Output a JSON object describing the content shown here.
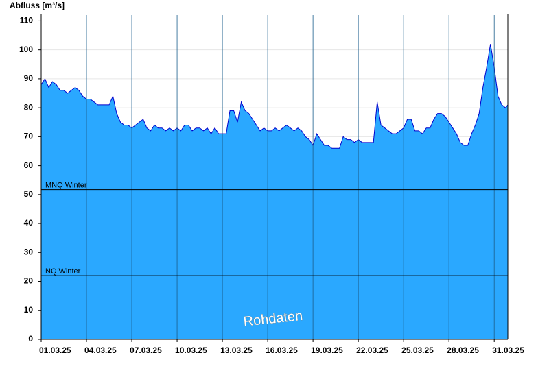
{
  "chart_data": {
    "type": "area",
    "y_label": "Abfluss [m³/s]",
    "annotation": "Rohdaten",
    "color": "#2aa8ff",
    "line_color": "#0000cc",
    "xlim": [
      1,
      31.9
    ],
    "xticks": [
      {
        "value": 1,
        "label": "01.03.25"
      },
      {
        "value": 4,
        "label": "04.03.25"
      },
      {
        "value": 7,
        "label": "07.03.25"
      },
      {
        "value": 10,
        "label": "10.03.25"
      },
      {
        "value": 13,
        "label": "13.03.25"
      },
      {
        "value": 16,
        "label": "16.03.25"
      },
      {
        "value": 19,
        "label": "19.03.25"
      },
      {
        "value": 22,
        "label": "22.03.25"
      },
      {
        "value": 25,
        "label": "25.03.25"
      },
      {
        "value": 28,
        "label": "28.03.25"
      },
      {
        "value": 31,
        "label": "31.03.25"
      }
    ],
    "ylim": [
      0,
      112
    ],
    "yticks": [
      0,
      10,
      20,
      30,
      40,
      50,
      60,
      70,
      80,
      90,
      100,
      110
    ],
    "grid": true,
    "reference_lines": [
      {
        "label": "MNQ Winter",
        "value": 51.7
      },
      {
        "label": "NQ Winter",
        "value": 22
      }
    ],
    "x": [
      1,
      1.25,
      1.5,
      1.75,
      2,
      2.25,
      2.5,
      2.75,
      3,
      3.25,
      3.5,
      3.75,
      4,
      4.25,
      4.5,
      4.75,
      5,
      5.25,
      5.5,
      5.75,
      6,
      6.25,
      6.5,
      6.75,
      7,
      7.25,
      7.5,
      7.75,
      8,
      8.25,
      8.5,
      8.75,
      9,
      9.25,
      9.5,
      9.75,
      10,
      10.25,
      10.5,
      10.75,
      11,
      11.25,
      11.5,
      11.75,
      12,
      12.25,
      12.5,
      12.75,
      13,
      13.25,
      13.5,
      13.75,
      14,
      14.25,
      14.5,
      14.75,
      15,
      15.25,
      15.5,
      15.75,
      16,
      16.25,
      16.5,
      16.75,
      17,
      17.25,
      17.5,
      17.75,
      18,
      18.25,
      18.5,
      18.75,
      19,
      19.25,
      19.5,
      19.75,
      20,
      20.25,
      20.5,
      20.75,
      21,
      21.25,
      21.5,
      21.75,
      22,
      22.25,
      22.5,
      22.75,
      23,
      23.25,
      23.5,
      23.75,
      24,
      24.25,
      24.5,
      24.75,
      25,
      25.25,
      25.5,
      25.75,
      26,
      26.25,
      26.5,
      26.75,
      27,
      27.25,
      27.5,
      27.75,
      28,
      28.25,
      28.5,
      28.75,
      29,
      29.25,
      29.5,
      29.75,
      30,
      30.25,
      30.5,
      30.75,
      31,
      31.25,
      31.5,
      31.75,
      31.9
    ],
    "values": [
      88,
      90,
      87,
      89,
      88,
      86,
      86,
      85,
      86,
      87,
      86,
      84,
      83,
      83,
      82,
      81,
      81,
      81,
      81,
      84,
      78,
      75,
      74,
      74,
      73,
      74,
      75,
      76,
      73,
      72,
      74,
      73,
      73,
      72,
      73,
      72,
      73,
      72,
      74,
      74,
      72,
      73,
      73,
      72,
      73,
      71,
      73,
      71,
      71,
      71,
      79,
      79,
      75,
      82,
      79,
      78,
      76,
      74,
      72,
      73,
      72,
      72,
      73,
      72,
      73,
      74,
      73,
      72,
      73,
      72,
      70,
      69,
      67,
      71,
      69,
      67,
      67,
      66,
      66,
      66,
      70,
      69,
      69,
      68,
      69,
      68,
      68,
      68,
      68,
      82,
      74,
      73,
      72,
      71,
      71,
      72,
      73,
      76,
      76,
      72,
      72,
      71,
      73,
      73,
      76,
      78,
      78,
      77,
      75,
      73,
      71,
      68,
      67,
      67,
      71,
      74,
      78,
      87,
      94,
      102,
      94,
      84,
      81,
      80,
      81
    ]
  }
}
